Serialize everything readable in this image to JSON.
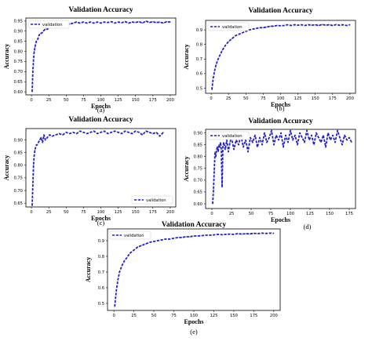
{
  "chart_data": [
    {
      "type": "line",
      "panel": "(a)",
      "title": "Validation Accuracy",
      "xlabel": "Epochs",
      "ylabel": "Accuracy",
      "xlim": [
        -8,
        208
      ],
      "ylim": [
        0.585,
        0.965
      ],
      "xticks": [
        0,
        25,
        50,
        75,
        100,
        125,
        150,
        175,
        200
      ],
      "yticks": [
        0.6,
        0.65,
        0.7,
        0.75,
        0.8,
        0.85,
        0.9,
        0.95
      ],
      "ytick_labels": [
        "0.60",
        "0.65",
        "0.70",
        "0.75",
        "0.80",
        "0.85",
        "0.90",
        "0.95"
      ],
      "legend": "top-left",
      "grid": false,
      "series": [
        {
          "name": "validation",
          "color": "#1f1fd0",
          "style": "dashed",
          "x": [
            1,
            2,
            3,
            4,
            5,
            7,
            9,
            11,
            13,
            15,
            17,
            20,
            23,
            26,
            30,
            35,
            40,
            45,
            50,
            55,
            60,
            65,
            70,
            75,
            80,
            85,
            90,
            95,
            100,
            105,
            110,
            115,
            120,
            125,
            130,
            135,
            140,
            145,
            150,
            155,
            160,
            165,
            170,
            175,
            180,
            185,
            190,
            195,
            200
          ],
          "y": [
            0.6,
            0.7,
            0.76,
            0.8,
            0.82,
            0.85,
            0.86,
            0.88,
            0.89,
            0.89,
            0.9,
            0.91,
            0.91,
            0.92,
            0.92,
            0.93,
            0.93,
            0.93,
            0.94,
            0.935,
            0.94,
            0.945,
            0.94,
            0.945,
            0.94,
            0.945,
            0.94,
            0.945,
            0.94,
            0.945,
            0.943,
            0.947,
            0.94,
            0.945,
            0.942,
            0.947,
            0.94,
            0.945,
            0.943,
            0.947,
            0.94,
            0.95,
            0.943,
            0.947,
            0.942,
            0.945,
            0.94,
            0.947,
            0.945
          ]
        }
      ]
    },
    {
      "type": "line",
      "panel": "(b)",
      "title": "Validation Accuracy",
      "xlabel": "Epochs",
      "ylabel": "Accuracy",
      "xlim": [
        -8,
        208
      ],
      "ylim": [
        0.465,
        0.965
      ],
      "xticks": [
        0,
        25,
        50,
        75,
        100,
        125,
        150,
        175,
        200
      ],
      "yticks": [
        0.5,
        0.6,
        0.7,
        0.8,
        0.9
      ],
      "ytick_labels": [
        "0.5",
        "0.6",
        "0.7",
        "0.8",
        "0.9"
      ],
      "legend": "top-left",
      "grid": false,
      "series": [
        {
          "name": "validation",
          "color": "#1f1fd0",
          "style": "dashed",
          "x": [
            1,
            3,
            5,
            7,
            10,
            13,
            16,
            20,
            25,
            30,
            35,
            40,
            45,
            50,
            55,
            60,
            65,
            70,
            75,
            80,
            85,
            90,
            95,
            100,
            105,
            110,
            115,
            120,
            125,
            130,
            135,
            140,
            145,
            150,
            155,
            160,
            165,
            170,
            175,
            180,
            185,
            190,
            195,
            200
          ],
          "y": [
            0.49,
            0.57,
            0.62,
            0.66,
            0.7,
            0.73,
            0.76,
            0.79,
            0.82,
            0.84,
            0.86,
            0.87,
            0.88,
            0.89,
            0.9,
            0.905,
            0.91,
            0.915,
            0.915,
            0.92,
            0.925,
            0.925,
            0.93,
            0.928,
            0.93,
            0.935,
            0.93,
            0.935,
            0.932,
            0.935,
            0.93,
            0.935,
            0.932,
            0.935,
            0.93,
            0.937,
            0.932,
            0.935,
            0.93,
            0.936,
            0.932,
            0.935,
            0.93,
            0.935
          ]
        }
      ]
    },
    {
      "type": "line",
      "panel": "(c)",
      "title": "Validation Accuracy",
      "xlabel": "Epochs",
      "ylabel": "Accuracy",
      "xlim": [
        -8,
        208
      ],
      "ylim": [
        0.635,
        0.945
      ],
      "xticks": [
        0,
        25,
        50,
        75,
        100,
        125,
        150,
        175,
        200
      ],
      "yticks": [
        0.65,
        0.7,
        0.75,
        0.8,
        0.85,
        0.9
      ],
      "ytick_labels": [
        "0.65",
        "0.70",
        "0.75",
        "0.80",
        "0.85",
        "0.90"
      ],
      "legend": "bottom-right",
      "grid": false,
      "series": [
        {
          "name": "validation",
          "color": "#1f1fd0",
          "style": "dashed",
          "x": [
            1,
            2,
            3,
            4,
            5,
            6,
            7,
            8,
            10,
            12,
            14,
            16,
            18,
            20,
            23,
            26,
            30,
            35,
            40,
            45,
            50,
            55,
            60,
            65,
            70,
            75,
            80,
            85,
            90,
            95,
            100,
            105,
            110,
            115,
            120,
            125,
            130,
            135,
            140,
            145,
            150,
            155,
            160,
            165,
            170,
            175,
            180,
            185,
            190
          ],
          "y": [
            0.64,
            0.72,
            0.8,
            0.84,
            0.86,
            0.87,
            0.88,
            0.88,
            0.89,
            0.9,
            0.91,
            0.89,
            0.92,
            0.9,
            0.91,
            0.92,
            0.915,
            0.92,
            0.925,
            0.92,
            0.93,
            0.925,
            0.93,
            0.925,
            0.935,
            0.93,
            0.925,
            0.93,
            0.935,
            0.925,
            0.93,
            0.935,
            0.925,
            0.93,
            0.935,
            0.93,
            0.925,
            0.935,
            0.93,
            0.925,
            0.935,
            0.93,
            0.92,
            0.935,
            0.93,
            0.925,
            0.93,
            0.915,
            0.93
          ]
        }
      ]
    },
    {
      "type": "line",
      "panel": "(d)",
      "title": "Validation Accuracy",
      "xlabel": "Epochs",
      "ylabel": "Accuracy",
      "xlim": [
        -8,
        183
      ],
      "ylim": [
        0.58,
        0.915
      ],
      "xticks": [
        0,
        25,
        50,
        75,
        100,
        125,
        150,
        175
      ],
      "yticks": [
        0.6,
        0.65,
        0.7,
        0.75,
        0.8,
        0.85,
        0.9
      ],
      "ytick_labels": [
        "0.60",
        "0.65",
        "0.70",
        "0.75",
        "0.80",
        "0.85",
        "0.90"
      ],
      "legend": "top-left",
      "grid": false,
      "series": [
        {
          "name": "validation",
          "color": "#1f1fd0",
          "style": "dashed",
          "x": [
            1,
            2,
            3,
            4,
            5,
            6,
            7,
            8,
            9,
            10,
            11,
            12,
            13,
            14,
            15,
            17,
            19,
            21,
            23,
            25,
            28,
            31,
            34,
            37,
            40,
            43,
            46,
            49,
            52,
            55,
            58,
            61,
            64,
            67,
            70,
            73,
            76,
            79,
            82,
            85,
            88,
            91,
            94,
            97,
            100,
            103,
            106,
            109,
            112,
            115,
            118,
            121,
            124,
            127,
            130,
            133,
            136,
            139,
            142,
            145,
            148,
            151,
            154,
            157,
            160,
            163,
            166,
            169,
            172,
            175,
            178
          ],
          "y": [
            0.6,
            0.66,
            0.74,
            0.82,
            0.8,
            0.83,
            0.84,
            0.82,
            0.85,
            0.84,
            0.86,
            0.83,
            0.67,
            0.84,
            0.86,
            0.83,
            0.87,
            0.82,
            0.86,
            0.88,
            0.83,
            0.87,
            0.85,
            0.89,
            0.84,
            0.87,
            0.82,
            0.88,
            0.86,
            0.89,
            0.84,
            0.88,
            0.85,
            0.9,
            0.86,
            0.88,
            0.91,
            0.85,
            0.89,
            0.87,
            0.9,
            0.84,
            0.89,
            0.86,
            0.91,
            0.87,
            0.89,
            0.85,
            0.9,
            0.88,
            0.86,
            0.91,
            0.87,
            0.89,
            0.85,
            0.9,
            0.88,
            0.86,
            0.89,
            0.84,
            0.9,
            0.87,
            0.89,
            0.86,
            0.91,
            0.88,
            0.85,
            0.89,
            0.87,
            0.88,
            0.86
          ]
        }
      ]
    },
    {
      "type": "line",
      "panel": "(e)",
      "title": "Validation Accuracy",
      "xlabel": "Epochs",
      "ylabel": "Accuracy",
      "xlim": [
        -8,
        208
      ],
      "ylim": [
        0.455,
        0.975
      ],
      "xticks": [
        0,
        25,
        50,
        75,
        100,
        125,
        150,
        175,
        200
      ],
      "yticks": [
        0.5,
        0.6,
        0.7,
        0.8,
        0.9
      ],
      "ytick_labels": [
        "0.5",
        "0.6",
        "0.7",
        "0.8",
        "0.9"
      ],
      "legend": "top-left",
      "grid": false,
      "series": [
        {
          "name": "validation",
          "color": "#1f1fd0",
          "style": "dashed",
          "x": [
            1,
            3,
            5,
            7,
            10,
            13,
            16,
            20,
            25,
            30,
            35,
            40,
            45,
            50,
            55,
            60,
            65,
            70,
            75,
            80,
            85,
            90,
            95,
            100,
            105,
            110,
            115,
            120,
            125,
            130,
            135,
            140,
            145,
            150,
            155,
            160,
            165,
            170,
            175,
            180,
            185,
            190,
            195,
            200
          ],
          "y": [
            0.48,
            0.58,
            0.65,
            0.7,
            0.74,
            0.77,
            0.79,
            0.82,
            0.84,
            0.86,
            0.87,
            0.88,
            0.89,
            0.895,
            0.9,
            0.905,
            0.91,
            0.91,
            0.915,
            0.92,
            0.92,
            0.925,
            0.925,
            0.93,
            0.93,
            0.932,
            0.935,
            0.935,
            0.937,
            0.94,
            0.938,
            0.94,
            0.942,
            0.94,
            0.945,
            0.942,
            0.945,
            0.943,
            0.947,
            0.945,
            0.948,
            0.946,
            0.948,
            0.947
          ]
        }
      ]
    }
  ]
}
